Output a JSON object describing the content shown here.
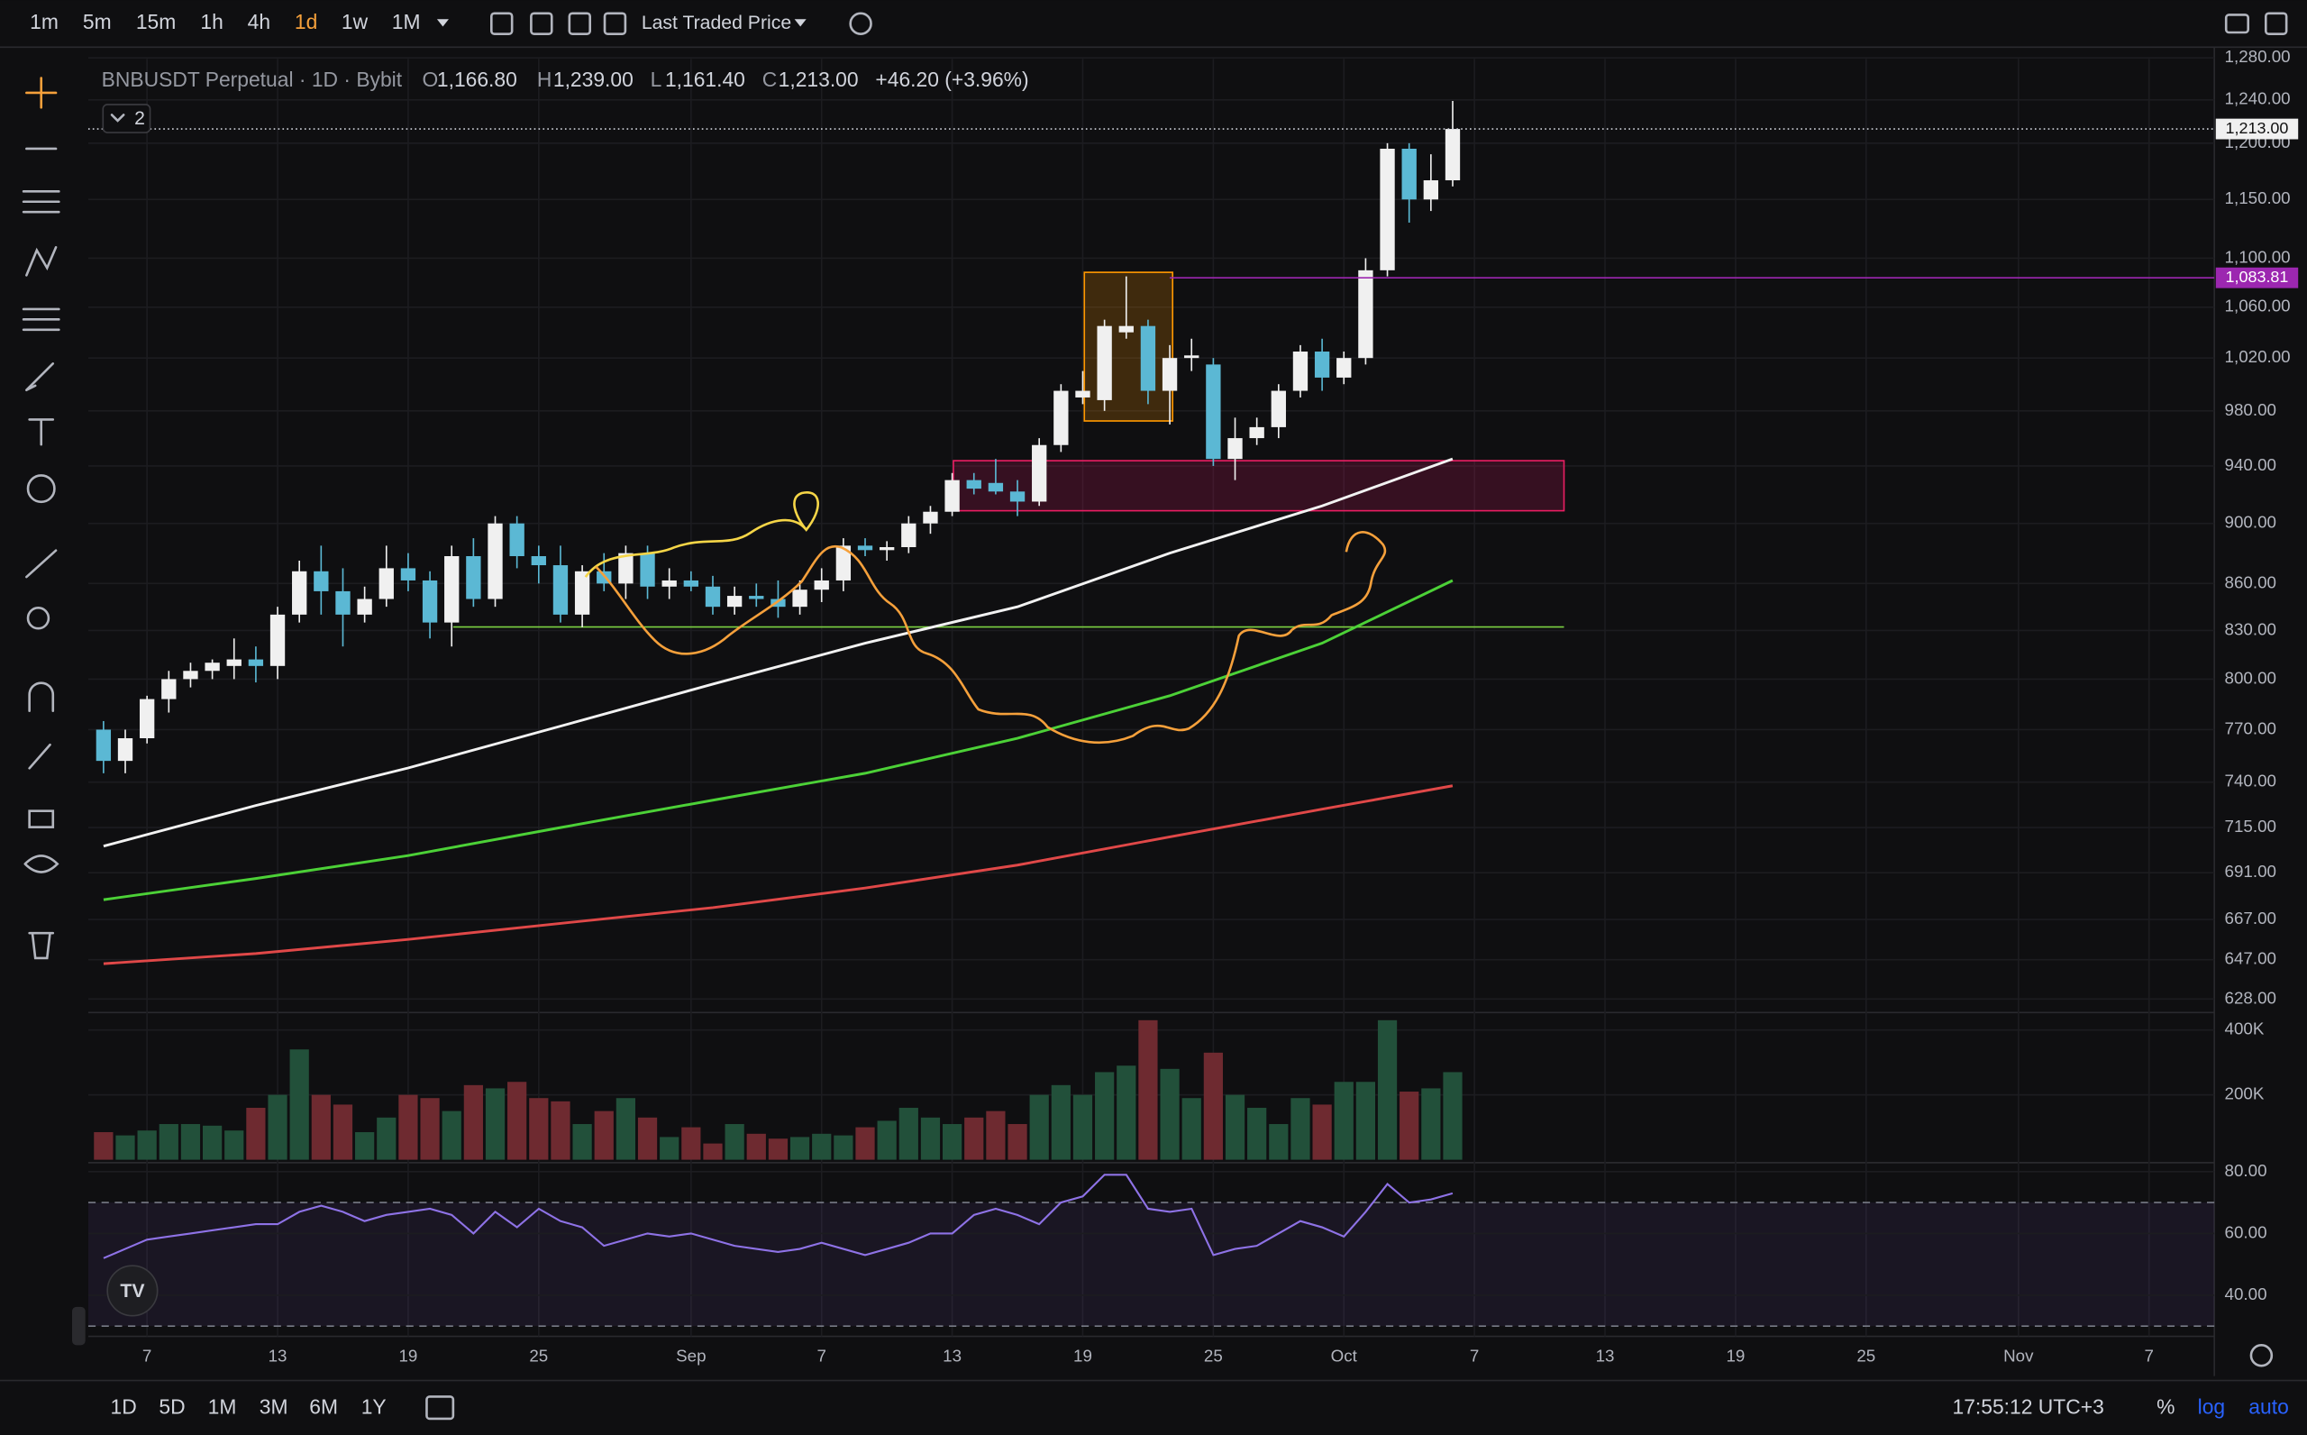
{
  "toolbar": {
    "intervals": [
      "1m",
      "5m",
      "15m",
      "1h",
      "4h",
      "1d",
      "1w",
      "1M"
    ],
    "active": "1d",
    "price_source": "Last Traded Price"
  },
  "legend": {
    "symbol": "BNBUSDT Perpetual · 1D · Bybit",
    "open_label": "O",
    "open": "1,166.80",
    "high_label": "H",
    "high": "1,239.00",
    "low_label": "L",
    "low": "1,161.40",
    "close_label": "C",
    "close": "1,213.00",
    "change": "+46.20 (+3.96%)",
    "indicator_count": "2"
  },
  "chart_data": {
    "type": "candlestick",
    "log_scale": true,
    "grid": true,
    "up_color": "#f0f0f0",
    "down_color": "#5bb8d4",
    "xlim": [
      -0.7,
      97
    ],
    "ylim": [
      623,
      1279
    ],
    "yticks": [
      {
        "value": 1280,
        "label": "1,280.00"
      },
      {
        "value": 1240,
        "label": "1,240.00"
      },
      {
        "value": 1200,
        "label": "1,200.00"
      },
      {
        "value": 1150,
        "label": "1,150.00"
      },
      {
        "value": 1100,
        "label": "1,100.00"
      },
      {
        "value": 1060,
        "label": "1,060.00"
      },
      {
        "value": 1020,
        "label": "1,020.00"
      },
      {
        "value": 980,
        "label": "980.00"
      },
      {
        "value": 940,
        "label": "940.00"
      },
      {
        "value": 900,
        "label": "900.00"
      },
      {
        "value": 860,
        "label": "860.00"
      },
      {
        "value": 830,
        "label": "830.00"
      },
      {
        "value": 800,
        "label": "800.00"
      },
      {
        "value": 770,
        "label": "770.00"
      },
      {
        "value": 740,
        "label": "740.00"
      },
      {
        "value": 715,
        "label": "715.00"
      },
      {
        "value": 691,
        "label": "691.00"
      },
      {
        "value": 667,
        "label": "667.00"
      },
      {
        "value": 647,
        "label": "647.00"
      },
      {
        "value": 628,
        "label": "628.00"
      }
    ],
    "xticks": [
      {
        "value": 2,
        "label": "7"
      },
      {
        "value": 8,
        "label": "13"
      },
      {
        "value": 14,
        "label": "19"
      },
      {
        "value": 20,
        "label": "25"
      },
      {
        "value": 27,
        "label": "Sep"
      },
      {
        "value": 33,
        "label": "7"
      },
      {
        "value": 39,
        "label": "13"
      },
      {
        "value": 45,
        "label": "19"
      },
      {
        "value": 51,
        "label": "25"
      },
      {
        "value": 57,
        "label": "Oct"
      },
      {
        "value": 63,
        "label": "7"
      },
      {
        "value": 69,
        "label": "13"
      },
      {
        "value": 75,
        "label": "19"
      },
      {
        "value": 81,
        "label": "25"
      },
      {
        "value": 88,
        "label": "Nov"
      },
      {
        "value": 94,
        "label": "7"
      }
    ],
    "open": [
      770,
      752,
      765,
      788,
      800,
      805,
      808,
      812,
      808,
      840,
      868,
      855,
      840,
      850,
      870,
      862,
      835,
      878,
      850,
      900,
      878,
      872,
      840,
      868,
      860,
      880,
      858,
      862,
      858,
      845,
      852,
      850,
      845,
      856,
      862,
      885,
      882,
      884,
      900,
      908,
      930,
      928,
      922,
      915,
      955,
      990,
      988,
      1040,
      1045,
      995,
      1020,
      1015,
      945,
      960,
      968,
      995,
      1025,
      1005,
      1020,
      1090,
      1195,
      1150,
      1166.8
    ],
    "high": [
      775,
      770,
      790,
      805,
      810,
      812,
      825,
      820,
      845,
      875,
      885,
      870,
      858,
      885,
      880,
      868,
      885,
      890,
      905,
      905,
      885,
      885,
      872,
      880,
      885,
      885,
      870,
      868,
      865,
      858,
      860,
      862,
      862,
      870,
      890,
      890,
      888,
      905,
      912,
      935,
      935,
      945,
      930,
      960,
      1000,
      1010,
      1050,
      1085,
      1050,
      1030,
      1035,
      1020,
      975,
      975,
      1000,
      1030,
      1035,
      1025,
      1100,
      1200,
      1200,
      1190,
      1239
    ],
    "low": [
      745,
      745,
      762,
      780,
      795,
      800,
      800,
      798,
      800,
      835,
      840,
      820,
      835,
      845,
      855,
      825,
      820,
      845,
      845,
      870,
      860,
      835,
      832,
      855,
      850,
      850,
      850,
      855,
      840,
      840,
      845,
      838,
      840,
      848,
      855,
      878,
      875,
      880,
      893,
      905,
      920,
      920,
      905,
      912,
      950,
      985,
      980,
      1035,
      985,
      970,
      1010,
      940,
      930,
      955,
      960,
      990,
      995,
      1000,
      1015,
      1085,
      1130,
      1140,
      1161.4
    ],
    "close": [
      752,
      765,
      788,
      800,
      805,
      810,
      812,
      808,
      840,
      868,
      855,
      840,
      850,
      870,
      862,
      835,
      878,
      850,
      900,
      878,
      872,
      840,
      868,
      860,
      880,
      858,
      862,
      858,
      845,
      852,
      850,
      845,
      856,
      862,
      885,
      882,
      884,
      900,
      908,
      930,
      924,
      922,
      915,
      955,
      995,
      995,
      1045,
      1045,
      995,
      1020,
      1022,
      945,
      960,
      968,
      995,
      1025,
      1005,
      1020,
      1090,
      1195,
      1150,
      1166.8,
      1213
    ],
    "moving_averages": [
      {
        "color": "#f2f2f2",
        "x": [
          0,
          7,
          14,
          21,
          28,
          35,
          42,
          49,
          56,
          62
        ],
        "values": [
          705,
          727,
          748,
          772,
          797,
          822,
          845,
          880,
          912,
          945
        ]
      },
      {
        "color": "#4cd137",
        "x": [
          0,
          7,
          14,
          21,
          28,
          35,
          42,
          49,
          56,
          62
        ],
        "values": [
          677,
          688,
          700,
          715,
          730,
          745,
          765,
          790,
          822,
          862
        ]
      },
      {
        "color": "#e04848",
        "x": [
          0,
          7,
          14,
          21,
          28,
          35,
          42,
          49,
          56,
          62
        ],
        "values": [
          645,
          650,
          657,
          665,
          673,
          683,
          695,
          710,
          725,
          738
        ]
      }
    ],
    "last_price": {
      "value": 1213,
      "label": "1,213.00"
    },
    "level": {
      "value": 1083.81,
      "label": "1,083.81",
      "color": "#9c27b0"
    },
    "volume": {
      "ylim": [
        0,
        440000
      ],
      "yticks": [
        {
          "value": 400000,
          "label": "400K"
        },
        {
          "value": 200000,
          "label": "200K"
        }
      ],
      "up_color": "#22503a",
      "down_color": "#6e2a30",
      "values": [
        85000,
        75000,
        90000,
        110000,
        110000,
        105000,
        90000,
        160000,
        200000,
        340000,
        200000,
        170000,
        85000,
        130000,
        200000,
        190000,
        150000,
        230000,
        220000,
        240000,
        190000,
        180000,
        110000,
        150000,
        190000,
        130000,
        70000,
        100000,
        50000,
        110000,
        80000,
        65000,
        70000,
        80000,
        75000,
        100000,
        120000,
        160000,
        130000,
        110000,
        130000,
        150000,
        110000,
        200000,
        230000,
        200000,
        270000,
        290000,
        430000,
        280000,
        190000,
        330000,
        200000,
        160000,
        110000,
        190000,
        170000,
        240000,
        240000,
        430000,
        210000,
        220000,
        270000
      ]
    },
    "rsi": {
      "ylim": [
        26.7,
        82.9
      ],
      "yticks": [
        {
          "value": 80,
          "label": "80.00"
        },
        {
          "value": 60,
          "label": "60.00"
        },
        {
          "value": 40,
          "label": "40.00"
        }
      ],
      "bands": [
        30,
        70
      ],
      "color": "#8e72e6",
      "values": [
        52,
        55,
        58,
        59,
        60,
        61,
        62,
        63,
        63,
        67,
        69,
        67,
        64,
        66,
        67,
        68,
        66,
        60,
        67,
        62,
        68,
        64,
        62,
        56,
        58,
        60,
        59,
        60,
        58,
        56,
        55,
        54,
        55,
        57,
        55,
        53,
        55,
        57,
        60,
        60,
        66,
        68,
        66,
        63,
        70,
        72,
        79,
        79,
        68,
        67,
        68,
        53,
        55,
        56,
        60,
        64,
        62,
        59,
        67,
        76,
        70,
        71,
        73
      ]
    }
  },
  "bottom_bar": {
    "ranges": [
      "1D",
      "5D",
      "1M",
      "3M",
      "6M",
      "1Y"
    ],
    "clock": "17:55:12 UTC+3",
    "percent": "%",
    "log": "log",
    "auto": "auto"
  }
}
